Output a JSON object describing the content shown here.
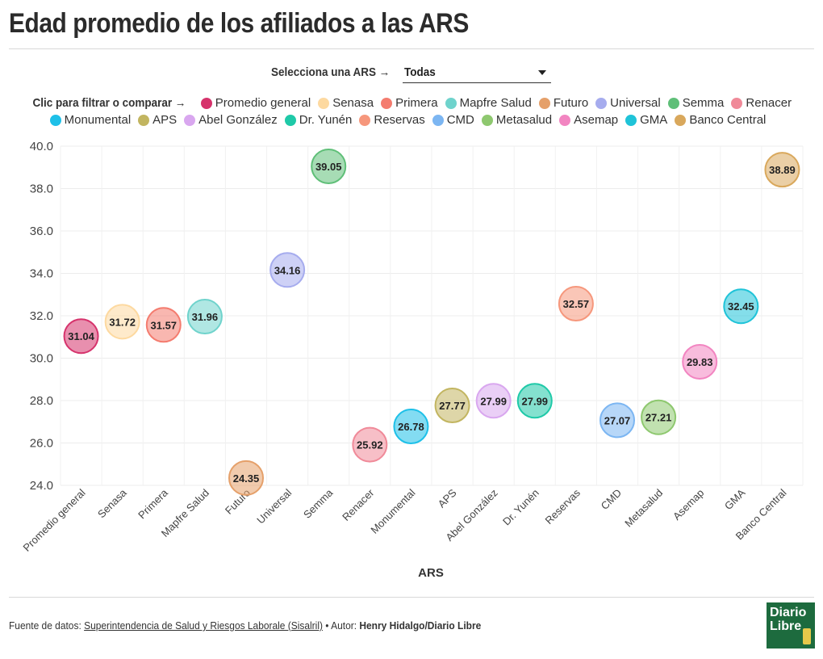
{
  "title": "Edad promedio de los afiliados a las ARS",
  "selector": {
    "label": "Selecciona una ARS →",
    "value": "Todas"
  },
  "legend": {
    "prefix": "Clic para filtrar o comparar →",
    "row1": [
      {
        "label": "Promedio general",
        "color": "#d6336c"
      },
      {
        "label": "Senasa",
        "color": "#fdd9a0"
      },
      {
        "label": "Primera",
        "color": "#f47c6f"
      },
      {
        "label": "Mapfre Salud",
        "color": "#6fd3cc"
      },
      {
        "label": "Futuro",
        "color": "#e5a06a"
      },
      {
        "label": "Universal",
        "color": "#a6acee"
      },
      {
        "label": "Semma",
        "color": "#5fbf78"
      },
      {
        "label": "Renacer",
        "color": "#f08a99"
      }
    ],
    "row2": [
      {
        "label": "Monumental",
        "color": "#1ec0e8"
      },
      {
        "label": "APS",
        "color": "#c2b560"
      },
      {
        "label": "Abel González",
        "color": "#d9a7ef"
      },
      {
        "label": "Dr. Yunén",
        "color": "#1fc9a8"
      },
      {
        "label": "Reservas",
        "color": "#f6977c"
      },
      {
        "label": "CMD",
        "color": "#7cb6f2"
      },
      {
        "label": "Metasalud",
        "color": "#8ec86f"
      },
      {
        "label": "Asemap",
        "color": "#f285c1"
      },
      {
        "label": "GMA",
        "color": "#1fc3d8"
      },
      {
        "label": "Banco Central",
        "color": "#d9a85c"
      }
    ]
  },
  "chart_data": {
    "type": "scatter",
    "categories": [
      "Promedio general",
      "Senasa",
      "Primera",
      "Mapfre Salud",
      "Futuro",
      "Universal",
      "Semma",
      "Renacer",
      "Monumental",
      "APS",
      "Abel González",
      "Dr. Yunén",
      "Reservas",
      "CMD",
      "Metasalud",
      "Asemap",
      "GMA",
      "Banco Central"
    ],
    "values": [
      31.04,
      31.72,
      31.57,
      31.96,
      24.35,
      34.16,
      39.05,
      25.92,
      26.78,
      27.77,
      27.99,
      27.99,
      32.57,
      27.07,
      27.21,
      29.83,
      32.45,
      38.89
    ],
    "value_labels": [
      "31.04",
      "31.72",
      "31.57",
      "31.96",
      "24.35",
      "34.16",
      "39.05",
      "25.92",
      "26.78",
      "27.77",
      "27.99",
      "27.99",
      "32.57",
      "27.07",
      "27.21",
      "29.83",
      "32.45",
      "38.89"
    ],
    "colors": [
      "#d6336c",
      "#fdd9a0",
      "#f47c6f",
      "#6fd3cc",
      "#e5a06a",
      "#a6acee",
      "#5fbf78",
      "#f08a99",
      "#1ec0e8",
      "#c2b560",
      "#d9a7ef",
      "#1fc9a8",
      "#f6977c",
      "#7cb6f2",
      "#8ec86f",
      "#f285c1",
      "#1fc3d8",
      "#d9a85c"
    ],
    "xlabel": "ARS",
    "ylabel": "",
    "ylim": [
      24.0,
      40.0
    ],
    "yticks": [
      "40.0",
      "38.0",
      "36.0",
      "34.0",
      "32.0",
      "30.0",
      "28.0",
      "26.0",
      "24.0"
    ],
    "grid": true,
    "legend_position": "top"
  },
  "footer": {
    "source_prefix": "Fuente de datos:",
    "source_link": "Superintendencia de Salud y Riesgos Laborale (Sisalril)",
    "author_prefix": "• Autor:",
    "author": "Henry Hidalgo/Diario Libre"
  },
  "logo": {
    "text_line1": "Diario",
    "text_line2": "Libre"
  }
}
